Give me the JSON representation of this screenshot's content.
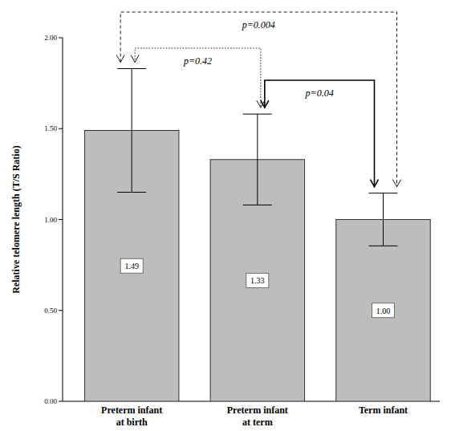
{
  "chart_data": {
    "type": "bar",
    "y_label": "Relative telomere length (T/S Ratio)",
    "categories": [
      "Preterm infant\nat birth",
      "Preterm infant\nat term",
      "Term infant"
    ],
    "values": [
      1.49,
      1.33,
      1.0
    ],
    "value_labels": [
      "1.49",
      "1.33",
      "1.00"
    ],
    "errors": [
      0.34,
      0.25,
      0.145
    ],
    "color": "#bdbdbd",
    "ylim": [
      0,
      2
    ],
    "yticks": [
      {
        "value": 0,
        "label": "0.00"
      },
      {
        "value": 0.5,
        "label": "0.50"
      },
      {
        "value": 1,
        "label": "1.00"
      },
      {
        "value": 1.5,
        "label": "1.50"
      },
      {
        "value": 2,
        "label": "2.00"
      }
    ],
    "data_labels": true,
    "annotations": [
      {
        "text": "p=0.004",
        "from": 0,
        "to": 2,
        "line_style": "dashed"
      },
      {
        "text": "p=0.42",
        "from": 0,
        "to": 1,
        "line_style": "dotted"
      },
      {
        "text": "p=0.04",
        "from": 1,
        "to": 2,
        "line_style": "solid"
      }
    ]
  }
}
